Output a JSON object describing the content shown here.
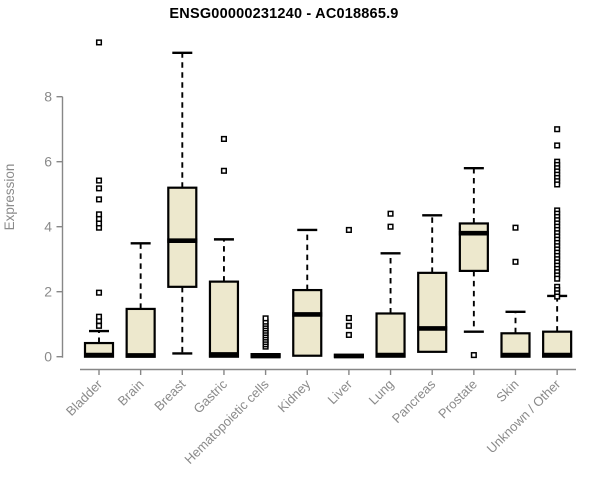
{
  "chart_data": {
    "type": "boxplot",
    "title": "ENSG00000231240 - AC018865.9",
    "ylabel": "Expression",
    "xlabel": "",
    "yticks": [
      0,
      2,
      4,
      6,
      8
    ],
    "ylim": [
      0,
      9.8
    ],
    "grid": false,
    "legend": "none",
    "categories": [
      "Bladder",
      "Brain",
      "Breast",
      "Gastric",
      "Hematopoietic cells",
      "Kidney",
      "Liver",
      "Lung",
      "Pancreas",
      "Prostate",
      "Skin",
      "Unknown / Other"
    ],
    "series": [
      {
        "name": "Bladder",
        "whisker_low": 0,
        "q1": 0,
        "median": 0.05,
        "q3": 0.42,
        "whisker_high": 0.79,
        "outliers": [
          0.95,
          1.1,
          1.23,
          1.97,
          3.97,
          4.1,
          4.24,
          4.38,
          4.84,
          5.18,
          5.42,
          9.67
        ]
      },
      {
        "name": "Brain",
        "whisker_low": 0,
        "q1": 0,
        "median": 0.04,
        "q3": 1.47,
        "whisker_high": 3.49,
        "outliers": []
      },
      {
        "name": "Breast",
        "whisker_low": 0.1,
        "q1": 2.15,
        "median": 3.57,
        "q3": 5.2,
        "whisker_high": 9.35,
        "outliers": []
      },
      {
        "name": "Gastric",
        "whisker_low": 0,
        "q1": 0,
        "median": 0.07,
        "q3": 2.31,
        "whisker_high": 3.61,
        "outliers": [
          5.72,
          6.7
        ]
      },
      {
        "name": "Hematopoietic cells",
        "whisker_low": 0,
        "q1": 0,
        "median": 0.02,
        "q3": 0.08,
        "whisker_high": 0.1,
        "outliers": [
          0.31,
          0.38,
          0.45,
          0.52,
          0.59,
          0.66,
          0.73,
          0.8,
          0.87,
          0.94,
          1.01,
          1.08,
          1.18
        ]
      },
      {
        "name": "Kidney",
        "whisker_low": 0.03,
        "q1": 0.03,
        "median": 1.3,
        "q3": 2.05,
        "whisker_high": 3.9,
        "outliers": []
      },
      {
        "name": "Liver",
        "whisker_low": 0,
        "q1": 0,
        "median": 0.02,
        "q3": 0.06,
        "whisker_high": 0.08,
        "outliers": [
          0.67,
          0.95,
          1.19,
          3.9
        ]
      },
      {
        "name": "Lung",
        "whisker_low": 0,
        "q1": 0,
        "median": 0.05,
        "q3": 1.33,
        "whisker_high": 3.18,
        "outliers": [
          4.0,
          4.4
        ]
      },
      {
        "name": "Pancreas",
        "whisker_low": 0.15,
        "q1": 0.15,
        "median": 0.87,
        "q3": 2.58,
        "whisker_high": 4.35,
        "outliers": []
      },
      {
        "name": "Prostate",
        "whisker_low": 0.77,
        "q1": 2.64,
        "median": 3.8,
        "q3": 4.1,
        "whisker_high": 5.8,
        "outliers": [
          0.05
        ]
      },
      {
        "name": "Skin",
        "whisker_low": 0,
        "q1": 0,
        "median": 0.05,
        "q3": 0.72,
        "whisker_high": 1.38,
        "outliers": [
          2.92,
          3.97
        ]
      },
      {
        "name": "Unknown / Other",
        "whisker_low": 0,
        "q1": 0,
        "median": 0.05,
        "q3": 0.77,
        "whisker_high": 1.87,
        "outliers": [
          7.0,
          6.5,
          6.0,
          5.9,
          5.8,
          5.7,
          5.6,
          5.5,
          5.4,
          5.3,
          4.5,
          4.4,
          4.3,
          4.2,
          4.1,
          4.0,
          3.9,
          3.8,
          3.7,
          3.6,
          3.5,
          3.4,
          3.3,
          3.2,
          3.1,
          3.0,
          2.9,
          2.8,
          2.7,
          2.6,
          2.5,
          2.4,
          2.15,
          2.05,
          1.95,
          1.85
        ]
      }
    ],
    "colors": {
      "box_fill": "#ede8cd",
      "box_stroke": "#000000",
      "median": "#000000",
      "whisker": "#000000",
      "outlier_stroke": "#000000",
      "outlier_fill": "#ffffff",
      "axis": "#878787",
      "tick_label": "#8a8a8a",
      "title": "#000000"
    }
  }
}
